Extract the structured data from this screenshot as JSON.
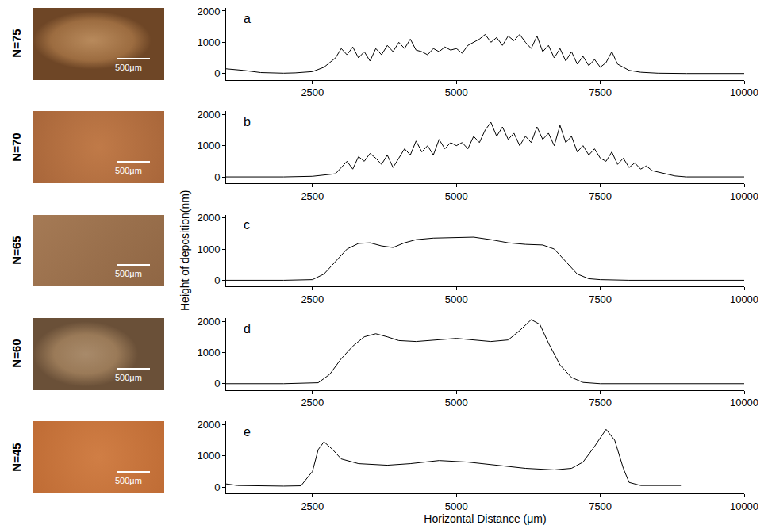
{
  "chart_data": [
    {
      "type": "line",
      "title": "a",
      "image_label": "N=75",
      "scale_bar": "500μm",
      "color": "#000000",
      "x": [
        1000,
        1300,
        1600,
        2000,
        2200,
        2500,
        2700,
        2900,
        3000,
        3100,
        3200,
        3300,
        3400,
        3500,
        3600,
        3700,
        3800,
        3900,
        4000,
        4100,
        4200,
        4300,
        4400,
        4500,
        4600,
        4700,
        4800,
        4900,
        5000,
        5100,
        5200,
        5300,
        5400,
        5500,
        5600,
        5700,
        5800,
        5900,
        6000,
        6100,
        6200,
        6300,
        6400,
        6500,
        6600,
        6700,
        6800,
        6900,
        7000,
        7100,
        7200,
        7300,
        7400,
        7500,
        7600,
        7700,
        7800,
        7900,
        8000,
        8200,
        8500,
        9000,
        10000
      ],
      "values": [
        150,
        100,
        30,
        10,
        20,
        60,
        200,
        500,
        800,
        600,
        850,
        500,
        700,
        400,
        800,
        600,
        900,
        700,
        1000,
        800,
        1100,
        750,
        700,
        600,
        800,
        700,
        850,
        750,
        800,
        650,
        900,
        1000,
        1100,
        1250,
        1000,
        1150,
        900,
        1200,
        1050,
        1250,
        1000,
        800,
        1200,
        700,
        900,
        500,
        800,
        400,
        700,
        300,
        550,
        250,
        450,
        200,
        350,
        700,
        300,
        200,
        100,
        40,
        10,
        0,
        0
      ],
      "xlim": [
        1000,
        10000
      ],
      "xticks": [
        2500,
        5000,
        7500,
        10000
      ],
      "ylim": [
        -200,
        2100
      ],
      "yticks": [
        0,
        1000,
        2000
      ]
    },
    {
      "type": "line",
      "title": "b",
      "image_label": "N=70",
      "scale_bar": "500μm",
      "color": "#000000",
      "x": [
        1000,
        2000,
        2500,
        2900,
        3000,
        3100,
        3200,
        3300,
        3400,
        3500,
        3600,
        3700,
        3800,
        3900,
        4000,
        4100,
        4200,
        4300,
        4400,
        4500,
        4600,
        4700,
        4800,
        4900,
        5000,
        5100,
        5200,
        5300,
        5400,
        5500,
        5600,
        5700,
        5800,
        5900,
        6000,
        6100,
        6200,
        6300,
        6400,
        6500,
        6600,
        6700,
        6800,
        6900,
        7000,
        7100,
        7200,
        7300,
        7400,
        7500,
        7600,
        7700,
        7800,
        7900,
        8000,
        8100,
        8200,
        8300,
        8400,
        8600,
        8800,
        9000,
        10000
      ],
      "values": [
        0,
        0,
        20,
        100,
        300,
        500,
        250,
        650,
        500,
        750,
        600,
        400,
        700,
        300,
        600,
        900,
        700,
        1150,
        800,
        1000,
        700,
        1200,
        900,
        1100,
        1000,
        1100,
        900,
        1300,
        1100,
        1500,
        1750,
        1300,
        1600,
        1200,
        1400,
        1000,
        1300,
        1100,
        1600,
        1200,
        1400,
        1000,
        1650,
        1100,
        1300,
        800,
        1000,
        700,
        900,
        600,
        500,
        800,
        400,
        600,
        300,
        450,
        250,
        350,
        200,
        120,
        30,
        0,
        0
      ],
      "xlim": [
        1000,
        10000
      ],
      "xticks": [
        2500,
        5000,
        7500,
        10000
      ],
      "ylim": [
        -200,
        2100
      ],
      "yticks": [
        0,
        1000,
        2000
      ]
    },
    {
      "type": "line",
      "title": "c",
      "image_label": "N=65",
      "scale_bar": "500μm",
      "color": "#000000",
      "x": [
        1000,
        2000,
        2500,
        2700,
        2900,
        3100,
        3300,
        3500,
        3700,
        3900,
        4100,
        4300,
        4600,
        5000,
        5300,
        5600,
        5900,
        6200,
        6500,
        6700,
        6900,
        7100,
        7300,
        7500,
        8000,
        10000
      ],
      "values": [
        0,
        0,
        20,
        200,
        600,
        1000,
        1180,
        1200,
        1100,
        1050,
        1200,
        1300,
        1350,
        1370,
        1380,
        1300,
        1200,
        1150,
        1130,
        1000,
        600,
        200,
        50,
        20,
        0,
        0
      ],
      "xlim": [
        1000,
        10000
      ],
      "xticks": [
        2500,
        5000,
        7500,
        10000
      ],
      "ylim": [
        -200,
        2100
      ],
      "yticks": [
        0,
        1000,
        2000
      ]
    },
    {
      "type": "line",
      "title": "d",
      "image_label": "N=60",
      "scale_bar": "500μm",
      "color": "#000000",
      "x": [
        1000,
        2000,
        2600,
        2800,
        3000,
        3200,
        3400,
        3600,
        3800,
        4000,
        4300,
        4600,
        5000,
        5300,
        5600,
        5900,
        6100,
        6300,
        6450,
        6600,
        6800,
        7000,
        7200,
        7500,
        10000
      ],
      "values": [
        0,
        0,
        30,
        300,
        800,
        1200,
        1500,
        1600,
        1500,
        1380,
        1350,
        1400,
        1450,
        1400,
        1350,
        1400,
        1700,
        2050,
        1900,
        1300,
        600,
        200,
        40,
        0,
        0
      ],
      "xlim": [
        1000,
        10000
      ],
      "xticks": [
        2500,
        5000,
        7500,
        10000
      ],
      "ylim": [
        -200,
        2100
      ],
      "yticks": [
        0,
        1000,
        2000
      ]
    },
    {
      "type": "line",
      "title": "e",
      "image_label": "N=45",
      "scale_bar": "500μm",
      "color": "#000000",
      "x": [
        1000,
        1200,
        2000,
        2300,
        2500,
        2600,
        2700,
        2850,
        3000,
        3300,
        3800,
        4200,
        4700,
        5200,
        5700,
        6200,
        6700,
        7000,
        7200,
        7400,
        7600,
        7750,
        7900,
        8000,
        8200,
        8900
      ],
      "values": [
        100,
        50,
        30,
        40,
        500,
        1200,
        1450,
        1200,
        900,
        750,
        700,
        750,
        850,
        800,
        700,
        600,
        550,
        600,
        800,
        1300,
        1850,
        1500,
        600,
        150,
        50,
        50
      ],
      "xlim": [
        1000,
        10000
      ],
      "xticks": [
        2500,
        5000,
        7500,
        10000
      ],
      "ylim": [
        -200,
        2100
      ],
      "yticks": [
        0,
        1000,
        2000
      ]
    }
  ],
  "xlabel": "Horizontal Distance (μm)",
  "ylabel": "Height of deposition(nm)"
}
